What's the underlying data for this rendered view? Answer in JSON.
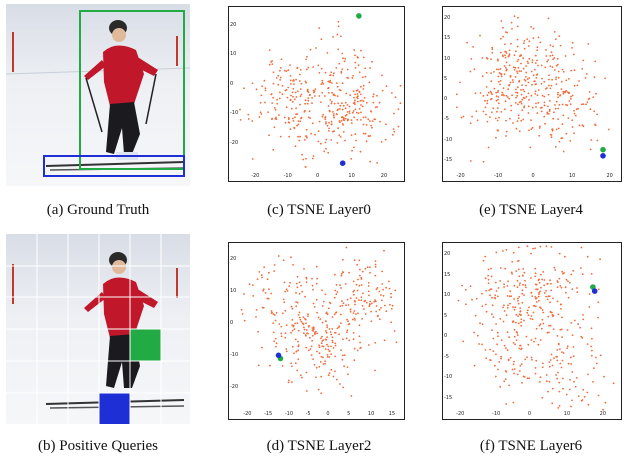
{
  "captions": {
    "a": "(a) Ground Truth",
    "b": "(b) Positive Queries",
    "c": "(c) TSNE Layer0",
    "d": "(d) TSNE Layer2",
    "e": "(e) TSNE Layer4",
    "f": "(f) TSNE Layer6"
  },
  "colors": {
    "point": "#f26b3a",
    "gt_person_box": "#22aa44",
    "gt_ski_box": "#1f2fd6",
    "query_green": "#22aa44",
    "query_blue": "#1f2fd6",
    "grid": "#ffffff"
  },
  "chart_data": [
    {
      "type": "scatter",
      "panel": "c",
      "xticks": [
        "-20",
        "-10",
        "0",
        "10",
        "20"
      ],
      "yticks": [
        "20",
        "10",
        "0",
        "-10",
        "-20"
      ],
      "xlim": [
        -25,
        25
      ],
      "ylim": [
        -30,
        25
      ],
      "n_points": 420,
      "highlight": {
        "green": [
          12,
          23
        ],
        "blue": [
          7,
          -27
        ]
      }
    },
    {
      "type": "scatter",
      "panel": "d",
      "xticks": [
        "-20",
        "-15",
        "-10",
        "-5",
        "0",
        "5",
        "10",
        "15"
      ],
      "yticks": [
        "20",
        "10",
        "0",
        "-10",
        "-20"
      ],
      "xlim": [
        -22,
        17
      ],
      "ylim": [
        -27,
        24
      ],
      "n_points": 420,
      "highlight": {
        "green": [
          -12,
          -11
        ],
        "blue": [
          -12.5,
          -10
        ]
      }
    },
    {
      "type": "scatter",
      "panel": "e",
      "xticks": [
        "-20",
        "-10",
        "0",
        "10",
        "20"
      ],
      "yticks": [
        "20",
        "15",
        "10",
        "5",
        "0",
        "-5",
        "-10",
        "-15"
      ],
      "xlim": [
        -22,
        22
      ],
      "ylim": [
        -18,
        22
      ],
      "n_points": 420,
      "highlight": {
        "green": [
          18,
          -12.5
        ],
        "blue": [
          18,
          -14
        ]
      }
    },
    {
      "type": "scatter",
      "panel": "f",
      "xticks": [
        "-20",
        "-10",
        "0",
        "10",
        "20"
      ],
      "yticks": [
        "20",
        "15",
        "10",
        "5",
        "0",
        "-5",
        "-10",
        "-15"
      ],
      "xlim": [
        -22,
        24
      ],
      "ylim": [
        -18,
        22
      ],
      "n_points": 420,
      "highlight": {
        "green": [
          17,
          12
        ],
        "blue": [
          17.5,
          11
        ]
      }
    }
  ]
}
